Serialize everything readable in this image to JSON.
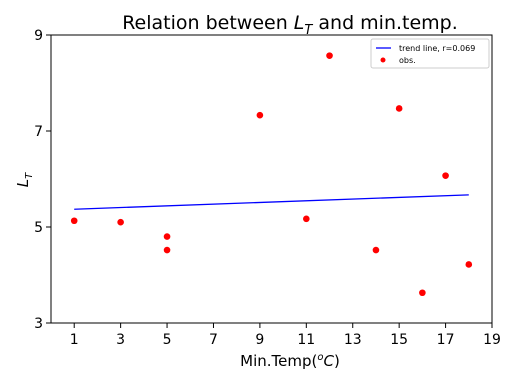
{
  "chart_data": {
    "type": "scatter",
    "title": {
      "prefix": "Relation between ",
      "symbol": "L",
      "subscript": "T",
      "suffix": " and min.temp."
    },
    "xlabel": {
      "prefix": "Min.Temp(",
      "superscript": "o",
      "unit": "C",
      "suffix": ")"
    },
    "ylabel": {
      "symbol": "L",
      "subscript": "T"
    },
    "xlim": [
      0,
      19
    ],
    "ylim": [
      3,
      9
    ],
    "x_ticks": [
      1,
      3,
      5,
      7,
      9,
      11,
      13,
      15,
      17,
      19
    ],
    "y_ticks": [
      3,
      5,
      7,
      9
    ],
    "grid": false,
    "legend_position": "top-right",
    "series": [
      {
        "name": "trend line, r=0.069",
        "kind": "line",
        "color": "#0000ff",
        "x": [
          1,
          18
        ],
        "y": [
          5.37,
          5.67
        ]
      },
      {
        "name": "obs.",
        "kind": "scatter",
        "color": "#ff0000",
        "x": [
          1,
          3,
          5,
          5,
          9,
          11,
          12,
          14,
          15,
          16,
          17,
          18
        ],
        "y": [
          5.13,
          5.1,
          4.8,
          4.52,
          7.33,
          5.17,
          8.57,
          4.52,
          7.47,
          3.63,
          6.07,
          4.22
        ]
      }
    ]
  }
}
